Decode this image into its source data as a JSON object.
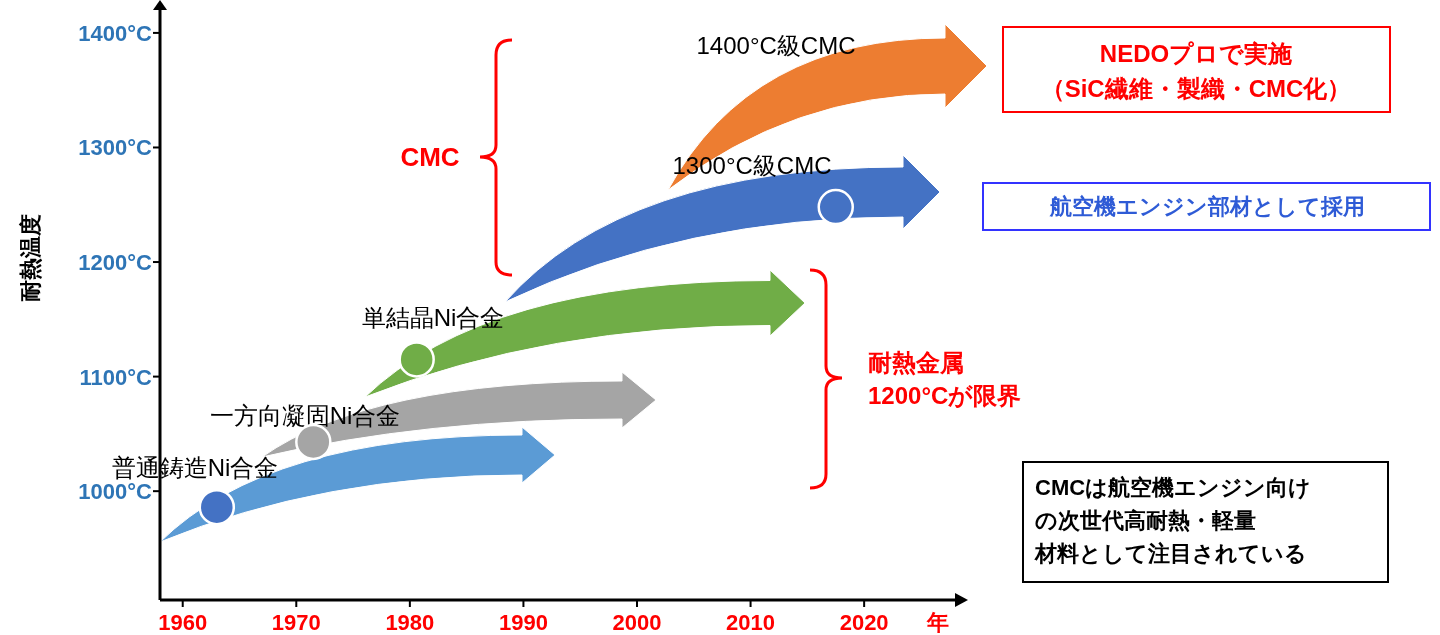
{
  "chart_data": {
    "type": "scatter",
    "ylabel": "耐熱温度",
    "xlabel": "年",
    "x": [
      1963,
      1971.5,
      1980.6,
      2017.5
    ],
    "values": [
      986,
      1043,
      1115,
      1248
    ],
    "colors": [
      "#4472c4",
      "#a5a5a5",
      "#70ad47",
      "#4472c4"
    ],
    "marker": "circle",
    "xlim": [
      1958,
      2028
    ],
    "ylim": [
      905,
      1420
    ],
    "xticks": [
      1960,
      1970,
      1980,
      1990,
      2000,
      2010,
      2020
    ],
    "yticks": [
      {
        "value": 1000,
        "label": "1000°C"
      },
      {
        "value": 1100,
        "label": "1100°C"
      },
      {
        "value": 1200,
        "label": "1200°C"
      },
      {
        "value": 1300,
        "label": "1300°C"
      },
      {
        "value": 1400,
        "label": "1400°C"
      }
    ],
    "annotations": [
      "1400°C級CMC",
      "1300°C級CMC",
      "単結晶Ni合金",
      "一方向凝固Ni合金",
      "普通鋳造Ni合金",
      "CMC",
      "耐熱金属\n1200°Cが限界",
      "NEDOプロで実施",
      "（SiC繊維・製織・CMC化）",
      "航空機エンジン部材として採用",
      "CMCは航空機エンジン向け",
      "の次世代高耐熱・軽量",
      "材料として注目されている"
    ]
  }
}
